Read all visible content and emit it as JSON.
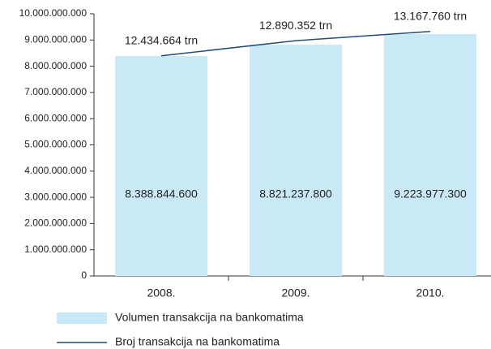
{
  "chart_data": {
    "type": "bar",
    "categories": [
      "2008.",
      "2009.",
      "2010."
    ],
    "ylim": [
      0,
      10000000000
    ],
    "yticks": [
      0,
      {
        "value": 1000000000,
        "label": "1.000.000.000"
      },
      {
        "value": 2000000000,
        "label": "2.000.000.000"
      },
      {
        "value": 3000000000,
        "label": "3.000.000.000"
      },
      {
        "value": 4000000000,
        "label": "4.000.000.000"
      },
      {
        "value": 5000000000,
        "label": "5.000.000.000"
      },
      {
        "value": 6000000000,
        "label": "6.000.000.000"
      },
      {
        "value": 7000000000,
        "label": "7.000.000.000"
      },
      {
        "value": 8000000000,
        "label": "8.000.000.000"
      },
      {
        "value": 9000000000,
        "label": "9.000.000.000"
      },
      {
        "value": 10000000000,
        "label": "10.000.000.000"
      }
    ],
    "y2lim": [
      5800000,
      13700000
    ],
    "series": [
      {
        "name": "Volumen transakcija na bankomatima",
        "type": "bar",
        "color": "#c9e9f7",
        "values": [
          8388844600,
          8821237800,
          9223977300
        ],
        "value_labels": [
          "8.388.844.600",
          "8.821.237.800",
          "9.223.977.300"
        ]
      },
      {
        "name": "Broj transakcija na bankomatima",
        "type": "line",
        "axis": "y2",
        "color": "#1f4e79",
        "values": [
          12434664,
          12890352,
          13167760
        ],
        "value_labels": [
          "12.434.664 trn",
          "12.890.352 trn",
          "13.167.760 trn"
        ]
      }
    ]
  }
}
